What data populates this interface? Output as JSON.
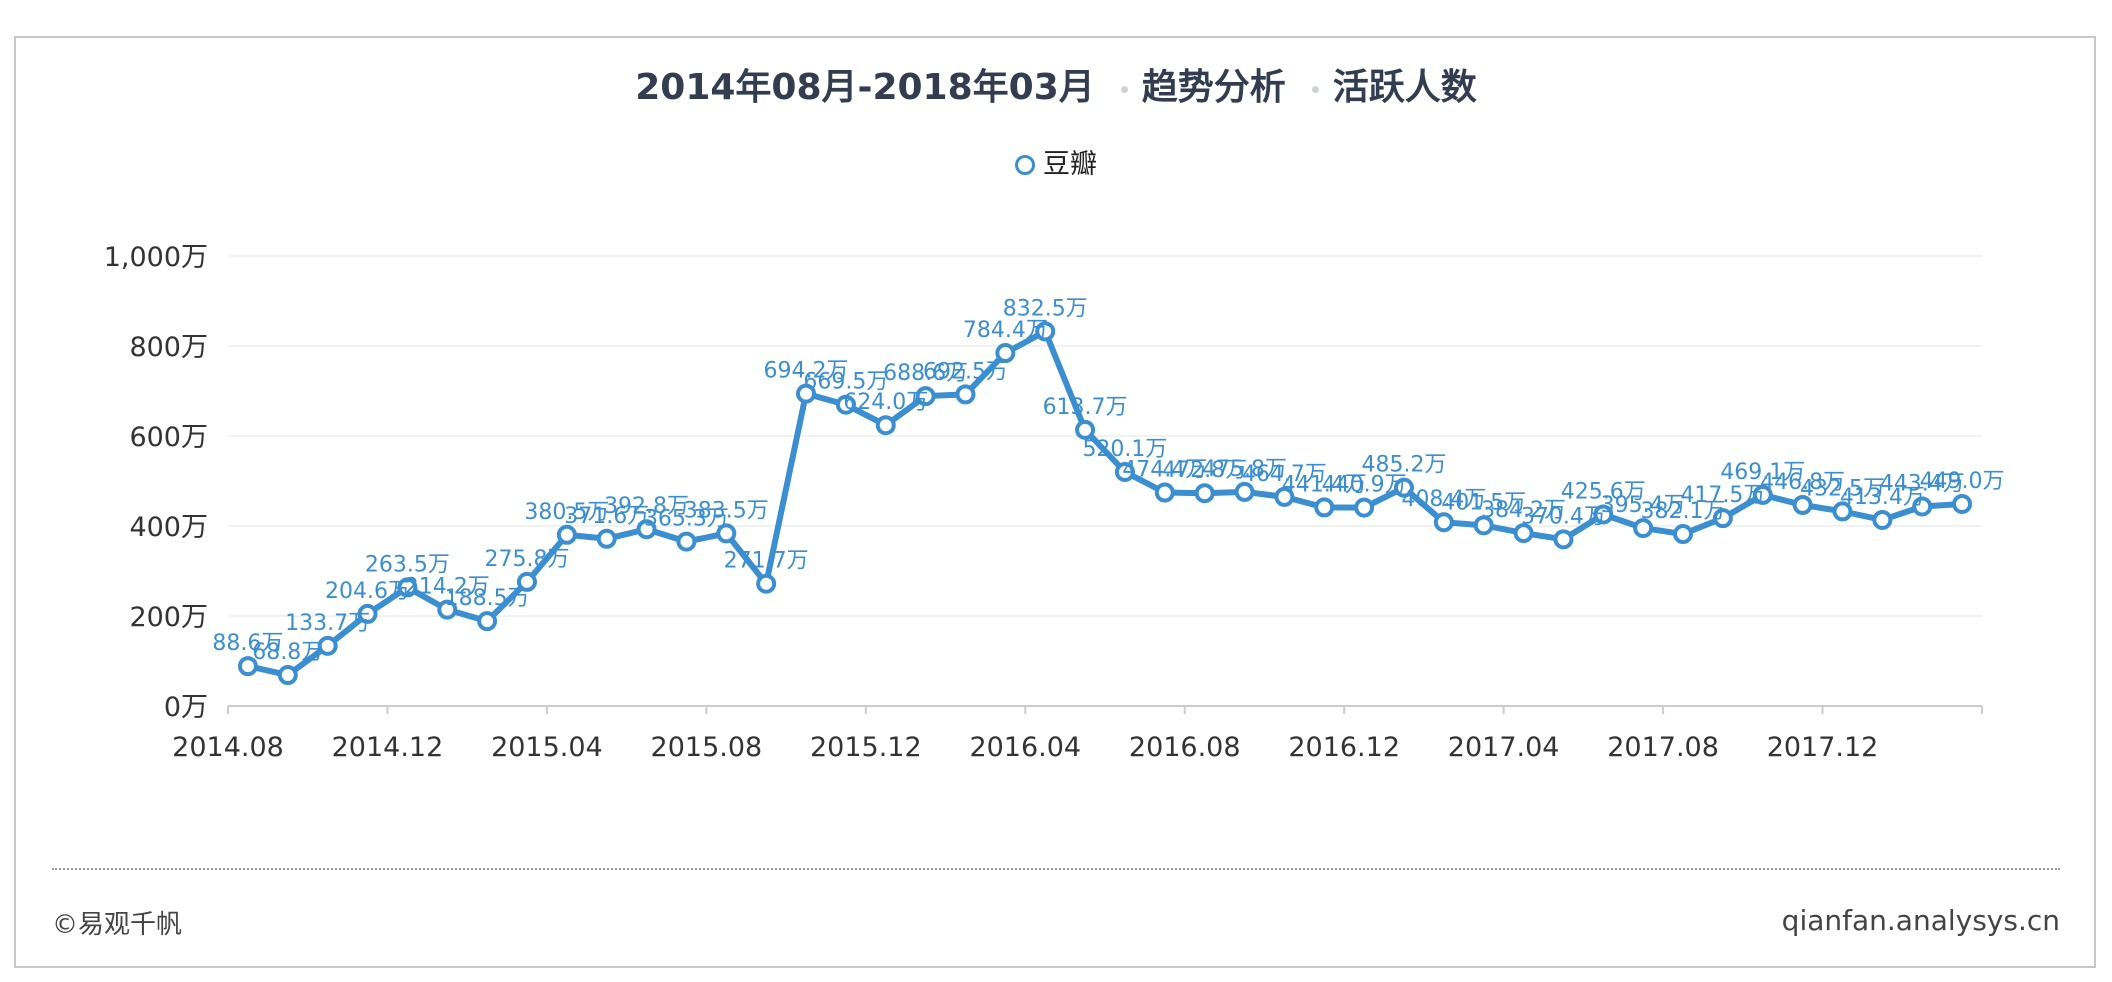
{
  "title": {
    "date_range": "2014年08月-2018年03月",
    "analysis": "趋势分析",
    "metric": "活跃人数"
  },
  "legend": {
    "series_label": "豆瓣"
  },
  "footer": {
    "copyright": "©易观千帆",
    "site": "qianfan.analysys.cn"
  },
  "colors": {
    "series": "#3b8fd0",
    "label": "#3b8fd0",
    "grid": "#eeeeee",
    "axis": "#333333"
  },
  "chart_data": {
    "type": "line",
    "title": "2014年08月-2018年03月 · 趋势分析 · 活跃人数",
    "ylim": [
      0,
      1000
    ],
    "y_ticks": [
      0,
      200,
      400,
      600,
      800,
      1000
    ],
    "y_tick_labels": [
      "0万",
      "200万",
      "400万",
      "600万",
      "800万",
      "1,000万"
    ],
    "x_tick_labels": [
      "2014.08",
      "2014.12",
      "2015.04",
      "2015.08",
      "2015.12",
      "2016.04",
      "2016.08",
      "2016.12",
      "2017.04",
      "2017.08",
      "2017.12"
    ],
    "grid": true,
    "legend_position": "top-center",
    "series": [
      {
        "name": "豆瓣",
        "x": [
          "2014.08",
          "2014.09",
          "2014.10",
          "2014.11",
          "2014.12",
          "2015.01",
          "2015.02",
          "2015.03",
          "2015.04",
          "2015.05",
          "2015.06",
          "2015.07",
          "2015.08",
          "2015.09",
          "2015.10",
          "2015.11",
          "2015.12",
          "2016.01",
          "2016.02",
          "2016.03",
          "2016.04",
          "2016.05",
          "2016.06",
          "2016.07",
          "2016.08",
          "2016.09",
          "2016.10",
          "2016.11",
          "2016.12",
          "2017.01",
          "2017.02",
          "2017.03",
          "2017.04",
          "2017.05",
          "2017.06",
          "2017.07",
          "2017.08",
          "2017.09",
          "2017.10",
          "2017.11",
          "2017.12",
          "2018.01",
          "2018.02",
          "2018.03"
        ],
        "values": [
          88.6,
          68.8,
          133.7,
          204.6,
          263.5,
          214.2,
          188.5,
          275.8,
          380.5,
          371.6,
          392.8,
          365.3,
          383.5,
          271.7,
          694.2,
          669.5,
          624.0,
          688.6,
          692.5,
          784.4,
          832.5,
          613.7,
          520.1,
          474.4,
          472.8,
          475.8,
          464.7,
          441.4,
          440.9,
          485.2,
          408.4,
          401.5,
          384.2,
          370.4,
          425.6,
          395.4,
          382.1,
          417.5,
          469.1,
          446.8,
          432.5,
          413.4,
          443.4,
          449.0
        ],
        "labels": [
          "88.6万",
          "68.8万",
          "133.7万",
          "204.6万",
          "263.5万",
          "214.2万",
          "188.5万",
          "275.8万",
          "380.5万",
          "371.6万",
          "392.8万",
          "365.3万",
          "383.5万",
          "271.7万",
          "694.2万",
          "669.5万",
          "624.0万",
          "688.6万",
          "692.5万",
          "784.4万",
          "832.5万",
          "613.7万",
          "520.1万",
          "474.4万",
          "472.8万",
          "475.8万",
          "464.7万",
          "441.4万",
          "440.9万",
          "485.2万",
          "408.4万",
          "401.5万",
          "384.2万",
          "370.4万",
          "425.6万",
          "395.4万",
          "382.1万",
          "417.5万",
          "469.1万",
          "446.8万",
          "432.5万",
          "413.4万",
          "443.4万",
          "449.0万"
        ]
      }
    ]
  }
}
